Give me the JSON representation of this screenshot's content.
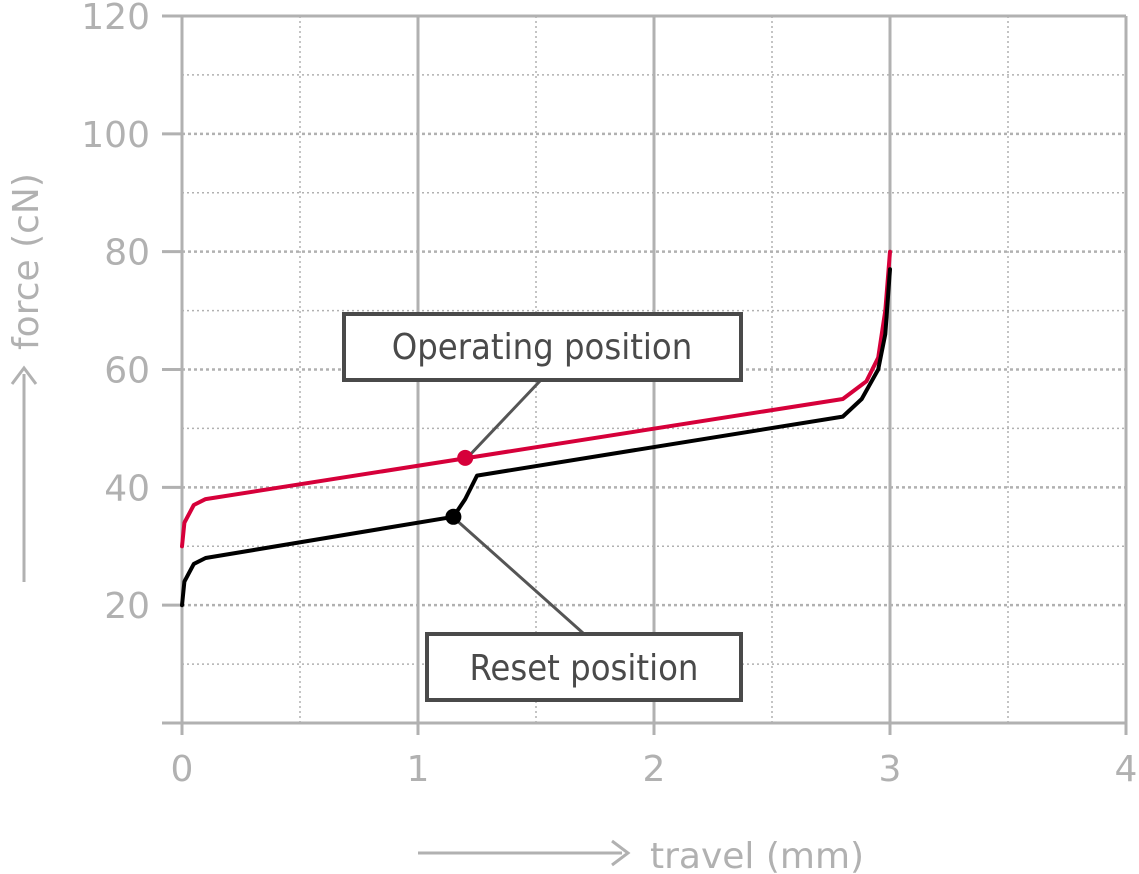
{
  "chart_data": {
    "type": "line",
    "xlabel": "travel (mm)",
    "ylabel": "force (cN)",
    "xlim": [
      0,
      4
    ],
    "ylim": [
      0,
      120
    ],
    "x_ticks": [
      "0",
      "1",
      "2",
      "3",
      "4"
    ],
    "y_ticks": [
      "20",
      "40",
      "60",
      "80",
      "100",
      "120"
    ],
    "grid": true,
    "series": [
      {
        "color": "#d6003a",
        "points": [
          [
            0,
            30
          ],
          [
            0.01,
            34
          ],
          [
            0.05,
            37
          ],
          [
            0.1,
            38
          ],
          [
            2.8,
            55
          ],
          [
            2.9,
            58
          ],
          [
            2.95,
            62
          ],
          [
            2.98,
            70
          ],
          [
            3.0,
            80
          ]
        ]
      },
      {
        "color": "#000000",
        "points": [
          [
            0,
            20
          ],
          [
            0.01,
            24
          ],
          [
            0.05,
            27
          ],
          [
            0.1,
            28
          ],
          [
            1.15,
            35
          ],
          [
            1.2,
            38
          ],
          [
            1.25,
            42
          ],
          [
            2.8,
            52
          ],
          [
            2.88,
            55
          ],
          [
            2.95,
            60
          ],
          [
            2.98,
            66
          ],
          [
            3.0,
            77
          ]
        ]
      }
    ],
    "annotations": [
      {
        "label": "Operating position",
        "x": 1.2,
        "y": 45,
        "color": "#d6003a"
      },
      {
        "label": "Reset position",
        "x": 1.15,
        "y": 35,
        "color": "#000000"
      }
    ]
  }
}
